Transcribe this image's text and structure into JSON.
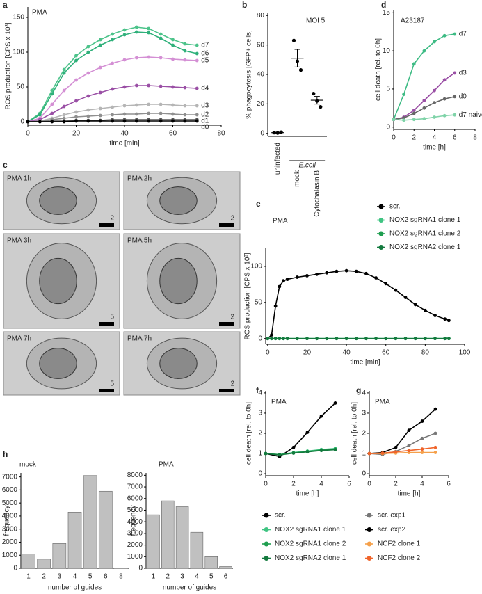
{
  "chart_data": [
    {
      "type": "line",
      "panel": "a",
      "title": "PMA",
      "xlabel": "time [min]",
      "ylabel": "ROS production [CPS x 10³]",
      "xlim": [
        0,
        80
      ],
      "ylim": [
        -5,
        165
      ],
      "xticks": [
        0,
        20,
        40,
        60,
        80
      ],
      "yticks": [
        0,
        50,
        100,
        150
      ],
      "legend": "end",
      "x": [
        0,
        5,
        10,
        15,
        20,
        25,
        30,
        35,
        40,
        45,
        50,
        55,
        60,
        65,
        70
      ],
      "series": [
        {
          "name": "d7",
          "color": "#4cc38a",
          "values": [
            0,
            12,
            45,
            75,
            95,
            108,
            118,
            126,
            132,
            136,
            134,
            126,
            118,
            112,
            110
          ]
        },
        {
          "name": "d6",
          "color": "#2fb07a",
          "values": [
            0,
            10,
            40,
            70,
            88,
            100,
            110,
            118,
            125,
            129,
            128,
            120,
            110,
            102,
            98
          ]
        },
        {
          "name": "d5",
          "color": "#d48fd4",
          "values": [
            0,
            5,
            25,
            45,
            60,
            70,
            78,
            84,
            89,
            92,
            93,
            92,
            90,
            89,
            88
          ]
        },
        {
          "name": "d4",
          "color": "#9a4fa5",
          "values": [
            0,
            3,
            12,
            22,
            30,
            37,
            42,
            47,
            50,
            52,
            52,
            51,
            50,
            49,
            48
          ]
        },
        {
          "name": "d3",
          "color": "#b5b5b5",
          "values": [
            0,
            1,
            5,
            10,
            14,
            17,
            19,
            21,
            23,
            24,
            25,
            25,
            24,
            23,
            23
          ]
        },
        {
          "name": "d2",
          "color": "#8f8f8f",
          "values": [
            0,
            0.5,
            3,
            5,
            7,
            8,
            9,
            10,
            11,
            11,
            12,
            12,
            11,
            10,
            10
          ]
        },
        {
          "name": "d1",
          "color": "#555555",
          "values": [
            0,
            0,
            1,
            1,
            2,
            2,
            2,
            3,
            3,
            3,
            3,
            3,
            3,
            3,
            3
          ]
        },
        {
          "name": "d0",
          "color": "#000000",
          "values": [
            0,
            0,
            0,
            0,
            1,
            1,
            1,
            1,
            1,
            1,
            1,
            1,
            1,
            1,
            1
          ]
        }
      ]
    },
    {
      "type": "dot",
      "panel": "b",
      "title": "MOI 5",
      "ylabel": "% phagocytosis [GFP+ cells]",
      "group_label": "E.coli",
      "ylim": [
        -2,
        82
      ],
      "yticks": [
        0,
        20,
        40,
        60,
        80
      ],
      "categories": [
        "uninfected",
        "mock",
        "Cytochalasin B"
      ],
      "points": [
        [
          0.5,
          0.3,
          0.8
        ],
        [
          63,
          49,
          43
        ],
        [
          27,
          22,
          18
        ]
      ],
      "mean": [
        0.5,
        51,
        22.5
      ],
      "sem": [
        0.2,
        6,
        2.6
      ],
      "color": "#000000"
    },
    {
      "type": "line",
      "panel": "d",
      "title": "A23187",
      "xlabel": "time [h]",
      "ylabel": "cell death [rel. to 0h]",
      "xlim": [
        0,
        8
      ],
      "ylim": [
        -0.3,
        15.4
      ],
      "xticks": [
        0,
        2,
        4,
        6,
        8
      ],
      "yticks": [
        0,
        5,
        10,
        15
      ],
      "legend": "end",
      "x": [
        0,
        1,
        2,
        3,
        4,
        5,
        6
      ],
      "series": [
        {
          "name": "d7",
          "color": "#3dbb84",
          "values": [
            1,
            4.3,
            8.3,
            10,
            11.2,
            12,
            12.2
          ]
        },
        {
          "name": "d3",
          "color": "#9a4fa5",
          "values": [
            1,
            1.3,
            2.2,
            3.5,
            4.8,
            6.2,
            7.1
          ]
        },
        {
          "name": "d0",
          "color": "#666666",
          "values": [
            1,
            1.2,
            1.8,
            2.5,
            3.2,
            3.7,
            4.0
          ]
        },
        {
          "name": "d7 naive",
          "color": "#7fd3a8",
          "values": [
            1,
            0.9,
            1,
            1.1,
            1.3,
            1.5,
            1.6
          ]
        }
      ]
    },
    {
      "type": "line",
      "panel": "e",
      "title": "PMA",
      "xlabel": "time [min]",
      "ylabel": "ROS production [CPS x 10³]",
      "xlim": [
        -1,
        100
      ],
      "ylim": [
        -8,
        125
      ],
      "xticks": [
        0,
        20,
        40,
        60,
        80,
        100
      ],
      "yticks": [
        0,
        50,
        100
      ],
      "legend": "top-right",
      "x": [
        0,
        2,
        4,
        6,
        8,
        10,
        15,
        20,
        25,
        30,
        35,
        40,
        45,
        50,
        55,
        60,
        65,
        70,
        75,
        80,
        85,
        90,
        92
      ],
      "series": [
        {
          "name": "scr.",
          "color": "#000000",
          "values": [
            0,
            5,
            45,
            72,
            80,
            82,
            85,
            87,
            89,
            91,
            93,
            94,
            93,
            90,
            84,
            76,
            67,
            57,
            47,
            39,
            32,
            27,
            25
          ]
        },
        {
          "name": "NOX2 sgRNA1 clone 1",
          "color": "#3fc482",
          "values": [
            0,
            0,
            0,
            0,
            0,
            0,
            0,
            0,
            0,
            0,
            0,
            0,
            0,
            0,
            0,
            0,
            0,
            0,
            0,
            0,
            0,
            0,
            0
          ]
        },
        {
          "name": "NOX2 sgRNA1 clone 2",
          "color": "#1f9e50",
          "values": [
            0,
            0,
            0,
            0,
            0,
            0,
            0,
            0,
            0,
            0,
            0,
            0,
            0,
            0,
            0,
            0,
            0,
            0,
            0,
            0,
            0,
            0,
            0
          ]
        },
        {
          "name": "NOX2 sgRNA2 clone 1",
          "color": "#137a3e",
          "values": [
            0,
            0,
            0,
            0,
            0,
            0,
            0,
            0,
            0,
            0,
            0,
            0,
            0,
            0,
            0,
            0,
            0,
            0,
            0,
            0,
            0,
            0,
            0
          ]
        }
      ]
    },
    {
      "type": "line",
      "panel": "f",
      "title": "PMA",
      "xlabel": "time [h]",
      "ylabel": "cell death [rel. to 0h]",
      "xlim": [
        0,
        6
      ],
      "ylim": [
        -0.1,
        4.1
      ],
      "xticks": [
        0,
        2,
        4,
        6
      ],
      "yticks": [
        0,
        1,
        2,
        3,
        4
      ],
      "legend": "below",
      "x": [
        0,
        1,
        2,
        3,
        4,
        5
      ],
      "series": [
        {
          "name": "scr.",
          "color": "#000000",
          "values": [
            1,
            0.85,
            1.3,
            2.05,
            2.85,
            3.5
          ]
        },
        {
          "name": "NOX2 sgRNA1 clone 1",
          "color": "#3fc482",
          "values": [
            1,
            0.95,
            1.05,
            1.12,
            1.2,
            1.25
          ]
        },
        {
          "name": "NOX2 sgRNA1 clone 2",
          "color": "#1f9e50",
          "values": [
            1,
            0.95,
            1.03,
            1.1,
            1.17,
            1.22
          ]
        },
        {
          "name": "NOX2 sgRNA2 clone 1",
          "color": "#137a3e",
          "values": [
            1,
            0.93,
            1.02,
            1.08,
            1.15,
            1.19
          ]
        }
      ]
    },
    {
      "type": "line",
      "panel": "g",
      "title": "PMA",
      "xlabel": "time [h]",
      "ylabel": "cell death [rel. to 0h]",
      "xlim": [
        0,
        6
      ],
      "ylim": [
        -0.1,
        4.1
      ],
      "xticks": [
        0,
        2,
        4,
        6
      ],
      "yticks": [
        0,
        1,
        2,
        3,
        4
      ],
      "legend": "below",
      "x": [
        0,
        1,
        2,
        3,
        4,
        5
      ],
      "series": [
        {
          "name": "scr. exp1",
          "color": "#777777",
          "values": [
            1,
            0.95,
            1.1,
            1.4,
            1.75,
            2.0
          ]
        },
        {
          "name": "scr. exp2",
          "color": "#000000",
          "values": [
            1,
            1.05,
            1.3,
            2.15,
            2.6,
            3.2
          ]
        },
        {
          "name": "NCF2 clone 1",
          "color": "#f5a04a",
          "values": [
            1,
            1,
            1.02,
            1.05,
            1.05,
            1.05
          ]
        },
        {
          "name": "NCF2 clone 2",
          "color": "#f0642a",
          "values": [
            1,
            1.02,
            1.08,
            1.15,
            1.22,
            1.3
          ]
        }
      ]
    },
    {
      "type": "bar",
      "panel": "h",
      "title": "mock",
      "xlabel": "number of guides",
      "ylabel": "frequency",
      "color": "#c0c0c0",
      "ylim": [
        0,
        7300
      ],
      "yticks": [
        0,
        1000,
        2000,
        3000,
        4000,
        5000,
        6000,
        7000
      ],
      "categories": [
        "1",
        "2",
        "3",
        "4",
        "5",
        "6",
        "8"
      ],
      "values": [
        1100,
        700,
        1900,
        4300,
        7100,
        5900,
        20
      ]
    },
    {
      "type": "bar",
      "title": "PMA",
      "xlabel": "number of guides",
      "ylabel": "frequency",
      "color": "#c0c0c0",
      "ylim": [
        0,
        8200
      ],
      "yticks": [
        0,
        1000,
        2000,
        3000,
        4000,
        5000,
        6000,
        7000,
        8000
      ],
      "categories": [
        "1",
        "2",
        "3",
        "4",
        "5",
        "6"
      ],
      "values": [
        4600,
        5800,
        5300,
        3100,
        1000,
        150
      ]
    }
  ],
  "micrographs": {
    "panel": "c",
    "images": [
      {
        "label": "PMA 1h",
        "scale": "2"
      },
      {
        "label": "PMA 2h",
        "scale": "2"
      },
      {
        "label": "PMA 3h",
        "scale": "5"
      },
      {
        "label": "PMA 5h",
        "scale": "2"
      },
      {
        "label": "PMA 7h",
        "scale": "5"
      },
      {
        "label": "PMA 7h",
        "scale": "2"
      }
    ]
  }
}
